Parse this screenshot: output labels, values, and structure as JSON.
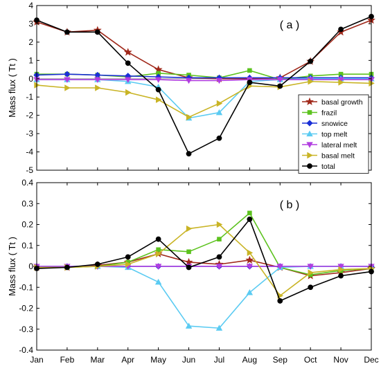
{
  "colors": {
    "basal growth": "#a0281a",
    "frazil": "#5cc21e",
    "snowice": "#1a2fd6",
    "top melt": "#5bcbf2",
    "lateral melt": "#b13de0",
    "basal melt": "#c9b425",
    "total": "#000000",
    "axis": "#000000",
    "zero_line": "#9a9a9a"
  },
  "chart_data": [
    {
      "type": "line",
      "panel_label": "( a )",
      "ylabel": "Mass flux ( Tt )",
      "xlabel": "",
      "categories": [
        "Jan",
        "Feb",
        "Mar",
        "Apr",
        "May",
        "Jun",
        "Jul",
        "Aug",
        "Sep",
        "Oct",
        "Nov",
        "Dec"
      ],
      "ylim": [
        -5,
        4
      ],
      "yticks": [
        -5,
        -4,
        -3,
        -2,
        -1,
        0,
        1,
        2,
        3,
        4
      ],
      "yticklabels": [
        "-5",
        "-4",
        "-3",
        "-2",
        "-1",
        "0",
        "1",
        "2",
        "3",
        "4"
      ],
      "grid": false,
      "zero_line": true,
      "legend_position": "bottom-right",
      "series": [
        {
          "name": "basal growth",
          "marker": "star",
          "values": [
            3.1,
            2.55,
            2.65,
            1.45,
            0.5,
            0.05,
            0.0,
            0.0,
            0.05,
            0.95,
            2.55,
            3.2
          ]
        },
        {
          "name": "frazil",
          "marker": "square",
          "values": [
            0.25,
            0.25,
            0.2,
            0.1,
            0.3,
            0.2,
            0.05,
            0.45,
            -0.05,
            0.15,
            0.25,
            0.25
          ]
        },
        {
          "name": "snowice",
          "marker": "diamond",
          "values": [
            0.2,
            0.25,
            0.2,
            0.15,
            0.1,
            0.05,
            0.05,
            0.05,
            0.05,
            0.05,
            0.05,
            0.05
          ]
        },
        {
          "name": "top melt",
          "marker": "triangle-up",
          "values": [
            -0.05,
            -0.05,
            -0.05,
            -0.15,
            -0.45,
            -2.15,
            -1.85,
            -0.15,
            -0.05,
            0.0,
            0.0,
            0.0
          ]
        },
        {
          "name": "lateral melt",
          "marker": "triangle-down",
          "values": [
            -0.05,
            -0.05,
            -0.05,
            -0.05,
            -0.05,
            -0.1,
            -0.1,
            -0.05,
            -0.05,
            -0.05,
            -0.05,
            -0.05
          ]
        },
        {
          "name": "basal melt",
          "marker": "triangle-right",
          "values": [
            -0.35,
            -0.5,
            -0.5,
            -0.75,
            -1.15,
            -2.1,
            -1.35,
            -0.4,
            -0.45,
            -0.15,
            -0.2,
            -0.25
          ]
        },
        {
          "name": "total",
          "marker": "circle",
          "values": [
            3.2,
            2.55,
            2.55,
            0.85,
            -0.6,
            -4.1,
            -3.25,
            -0.2,
            -0.4,
            0.95,
            2.7,
            3.4
          ]
        }
      ]
    },
    {
      "type": "line",
      "panel_label": "( b )",
      "ylabel": "Mass flux ( Tt )",
      "xlabel": "",
      "categories": [
        "Jan",
        "Feb",
        "Mar",
        "Apr",
        "May",
        "Jun",
        "Jul",
        "Aug",
        "Sep",
        "Oct",
        "Nov",
        "Dec"
      ],
      "ylim": [
        -0.4,
        0.4
      ],
      "yticks": [
        -0.4,
        -0.3,
        -0.2,
        -0.1,
        0,
        0.1,
        0.2,
        0.3,
        0.4
      ],
      "yticklabels": [
        "-0.4",
        "-0.3",
        "-0.2",
        "-0.1",
        "0",
        "0.1",
        "0.2",
        "0.3",
        "0.4"
      ],
      "grid": false,
      "zero_line": true,
      "series": [
        {
          "name": "basal growth",
          "marker": "star",
          "values": [
            -0.005,
            -0.005,
            0.005,
            0.02,
            0.06,
            0.02,
            0.01,
            0.03,
            -0.005,
            -0.045,
            -0.03,
            -0.01
          ]
        },
        {
          "name": "frazil",
          "marker": "square",
          "values": [
            -0.005,
            -0.005,
            0.0,
            0.02,
            0.08,
            0.07,
            0.13,
            0.255,
            -0.005,
            -0.04,
            -0.02,
            -0.01
          ]
        },
        {
          "name": "snowice",
          "marker": "diamond",
          "values": [
            0.0,
            0.0,
            0.0,
            0.0,
            0.0,
            0.0,
            0.0,
            0.0,
            0.0,
            0.0,
            0.0,
            0.0
          ]
        },
        {
          "name": "top melt",
          "marker": "triangle-up",
          "values": [
            0.0,
            0.0,
            0.0,
            -0.005,
            -0.075,
            -0.285,
            -0.295,
            -0.125,
            -0.005,
            0.0,
            0.0,
            0.0
          ]
        },
        {
          "name": "lateral melt",
          "marker": "triangle-down",
          "values": [
            0.0,
            0.0,
            0.0,
            0.0,
            0.0,
            0.0,
            0.0,
            0.0,
            0.0,
            0.0,
            0.0,
            0.0
          ]
        },
        {
          "name": "basal melt",
          "marker": "triangle-right",
          "values": [
            -0.005,
            -0.005,
            0.0,
            0.01,
            0.06,
            0.18,
            0.2,
            0.065,
            -0.14,
            -0.03,
            -0.015,
            -0.01
          ]
        },
        {
          "name": "total",
          "marker": "circle",
          "values": [
            -0.01,
            -0.005,
            0.01,
            0.045,
            0.13,
            -0.005,
            0.045,
            0.225,
            -0.165,
            -0.1,
            -0.045,
            -0.025
          ]
        }
      ]
    }
  ]
}
